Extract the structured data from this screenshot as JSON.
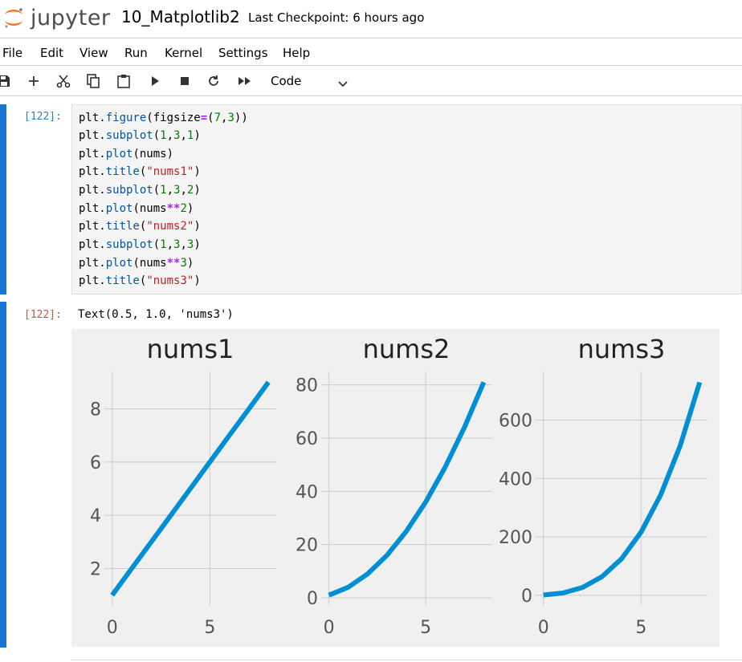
{
  "app": {
    "logo_text": "jupyter",
    "notebook_name": "10_Matplotlib2",
    "checkpoint": "Last Checkpoint: 6 hours ago"
  },
  "menu": [
    "File",
    "Edit",
    "View",
    "Run",
    "Kernel",
    "Settings",
    "Help"
  ],
  "toolbar": {
    "icons": [
      "save-icon",
      "add-cell-icon",
      "cut-icon",
      "copy-icon",
      "paste-icon",
      "run-icon",
      "stop-icon",
      "restart-icon",
      "fast-forward-icon"
    ],
    "cell_type": "Code"
  },
  "cells": {
    "input_prompt": "[122]:",
    "output_prompt": "[122]:",
    "code_lines": [
      "plt.figure(figsize=(7,3))",
      "plt.subplot(1,3,1)",
      "plt.plot(nums)",
      "plt.title(\"nums1\")",
      "plt.subplot(1,3,2)",
      "plt.plot(nums**2)",
      "plt.title(\"nums2\")",
      "plt.subplot(1,3,3)",
      "plt.plot(nums**3)",
      "plt.title(\"nums3\")"
    ],
    "output_text": "Text(0.5, 1.0, 'nums3')"
  },
  "chart_data": [
    {
      "type": "line",
      "title": "nums1",
      "x": [
        0,
        1,
        2,
        3,
        4,
        5,
        6,
        7,
        8
      ],
      "y": [
        1,
        2,
        3,
        4,
        5,
        6,
        7,
        8,
        9
      ],
      "xticks": [
        0,
        5
      ],
      "yticks": [
        2,
        4,
        6,
        8
      ],
      "xlim": [
        -0.4,
        8.4
      ],
      "ylim": [
        0.6,
        9.4
      ],
      "grid": true,
      "color": "#008fd5"
    },
    {
      "type": "line",
      "title": "nums2",
      "x": [
        0,
        1,
        2,
        3,
        4,
        5,
        6,
        7,
        8
      ],
      "y": [
        1,
        4,
        9,
        16,
        25,
        36,
        49,
        64,
        81
      ],
      "xticks": [
        0,
        5
      ],
      "yticks": [
        0,
        20,
        40,
        60,
        80
      ],
      "xlim": [
        -0.4,
        8.4
      ],
      "ylim": [
        -3,
        85
      ],
      "grid": true,
      "color": "#008fd5"
    },
    {
      "type": "line",
      "title": "nums3",
      "x": [
        0,
        1,
        2,
        3,
        4,
        5,
        6,
        7,
        8
      ],
      "y": [
        1,
        8,
        27,
        64,
        125,
        216,
        343,
        512,
        729
      ],
      "xticks": [
        0,
        5
      ],
      "yticks": [
        0,
        200,
        400,
        600
      ],
      "xlim": [
        -0.4,
        8.4
      ],
      "ylim": [
        -36,
        766
      ],
      "grid": true,
      "color": "#008fd5"
    }
  ]
}
